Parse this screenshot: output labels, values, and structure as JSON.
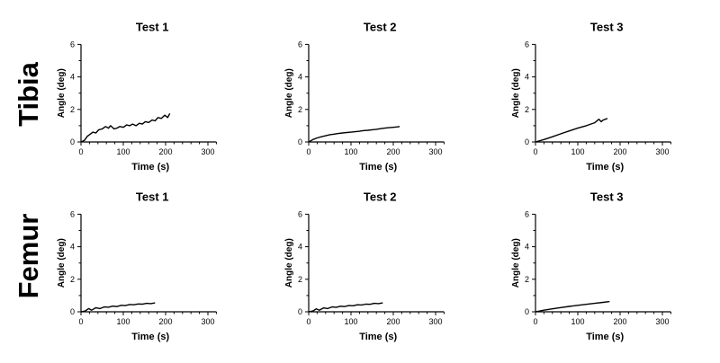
{
  "row_labels": [
    "Tibia",
    "Femur"
  ],
  "chart_data": [
    {
      "type": "line",
      "row": "Tibia",
      "title": "Test 1",
      "xlabel": "Time  (s)",
      "ylabel": "Angle (deg)",
      "xlim": [
        0,
        320
      ],
      "ylim": [
        0,
        6
      ],
      "xticks": [
        0,
        100,
        200,
        300
      ],
      "yticks": [
        0,
        2,
        4,
        6
      ],
      "series": [
        {
          "x": [
            0,
            8,
            15,
            20,
            28,
            35,
            42,
            50,
            58,
            65,
            70,
            78,
            85,
            92,
            100,
            108,
            115,
            122,
            130,
            138,
            145,
            152,
            160,
            168,
            175,
            182,
            190,
            198,
            205,
            210
          ],
          "y": [
            0,
            0.1,
            0.35,
            0.45,
            0.6,
            0.55,
            0.75,
            0.8,
            0.95,
            0.85,
            1.0,
            0.8,
            0.85,
            0.95,
            0.9,
            1.05,
            1.0,
            1.1,
            1.0,
            1.15,
            1.1,
            1.25,
            1.2,
            1.35,
            1.3,
            1.5,
            1.45,
            1.65,
            1.5,
            1.75
          ]
        }
      ]
    },
    {
      "type": "line",
      "row": "Tibia",
      "title": "Test 2",
      "xlabel": "Time  (s)",
      "ylabel": "Angle (deg)",
      "xlim": [
        0,
        320
      ],
      "ylim": [
        0,
        6
      ],
      "xticks": [
        0,
        100,
        200,
        300
      ],
      "yticks": [
        0,
        2,
        4,
        6
      ],
      "series": [
        {
          "x": [
            0,
            10,
            20,
            30,
            40,
            50,
            60,
            70,
            80,
            90,
            100,
            110,
            120,
            130,
            140,
            150,
            160,
            170,
            180,
            190,
            200,
            210,
            215
          ],
          "y": [
            0,
            0.15,
            0.25,
            0.32,
            0.38,
            0.45,
            0.48,
            0.52,
            0.55,
            0.58,
            0.6,
            0.63,
            0.66,
            0.7,
            0.72,
            0.75,
            0.78,
            0.82,
            0.85,
            0.88,
            0.9,
            0.93,
            0.95
          ]
        }
      ]
    },
    {
      "type": "line",
      "row": "Tibia",
      "title": "Test 3",
      "xlabel": "Time  (s)",
      "ylabel": "Angle (deg)",
      "xlim": [
        0,
        320
      ],
      "ylim": [
        0,
        6
      ],
      "xticks": [
        0,
        100,
        200,
        300
      ],
      "yticks": [
        0,
        2,
        4,
        6
      ],
      "series": [
        {
          "x": [
            0,
            20,
            40,
            60,
            80,
            100,
            120,
            140,
            150,
            155,
            160,
            170
          ],
          "y": [
            0,
            0.15,
            0.32,
            0.5,
            0.68,
            0.85,
            1.0,
            1.18,
            1.4,
            1.25,
            1.35,
            1.45
          ]
        }
      ]
    },
    {
      "type": "line",
      "row": "Femur",
      "title": "Test 1",
      "xlabel": "Time  (s)",
      "ylabel": "Angle (deg)",
      "xlim": [
        0,
        320
      ],
      "ylim": [
        0,
        6
      ],
      "xticks": [
        0,
        100,
        200,
        300
      ],
      "yticks": [
        0,
        2,
        4,
        6
      ],
      "series": [
        {
          "x": [
            0,
            10,
            18,
            25,
            35,
            45,
            55,
            65,
            75,
            85,
            95,
            105,
            115,
            125,
            135,
            145,
            155,
            165,
            175
          ],
          "y": [
            0,
            0.05,
            0.2,
            0.1,
            0.25,
            0.2,
            0.3,
            0.28,
            0.35,
            0.32,
            0.4,
            0.38,
            0.45,
            0.43,
            0.48,
            0.47,
            0.52,
            0.5,
            0.55
          ]
        }
      ]
    },
    {
      "type": "line",
      "row": "Femur",
      "title": "Test 2",
      "xlabel": "Time  (s)",
      "ylabel": "Angle (deg)",
      "xlim": [
        0,
        320
      ],
      "ylim": [
        0,
        6
      ],
      "xticks": [
        0,
        100,
        200,
        300
      ],
      "yticks": [
        0,
        2,
        4,
        6
      ],
      "series": [
        {
          "x": [
            0,
            10,
            18,
            25,
            35,
            45,
            55,
            65,
            75,
            85,
            95,
            105,
            115,
            125,
            135,
            145,
            155,
            165,
            175
          ],
          "y": [
            0,
            0.05,
            0.18,
            0.1,
            0.24,
            0.2,
            0.3,
            0.27,
            0.34,
            0.32,
            0.38,
            0.37,
            0.43,
            0.42,
            0.47,
            0.46,
            0.52,
            0.5,
            0.55
          ]
        }
      ]
    },
    {
      "type": "line",
      "row": "Femur",
      "title": "Test 3",
      "xlabel": "Time  (s)",
      "ylabel": "Angle (deg)",
      "xlim": [
        0,
        320
      ],
      "ylim": [
        0,
        6
      ],
      "xticks": [
        0,
        100,
        200,
        300
      ],
      "yticks": [
        0,
        2,
        4,
        6
      ],
      "series": [
        {
          "x": [
            0,
            20,
            40,
            60,
            80,
            100,
            120,
            140,
            160,
            175
          ],
          "y": [
            0,
            0.1,
            0.18,
            0.26,
            0.33,
            0.4,
            0.46,
            0.52,
            0.58,
            0.63
          ]
        }
      ]
    }
  ]
}
